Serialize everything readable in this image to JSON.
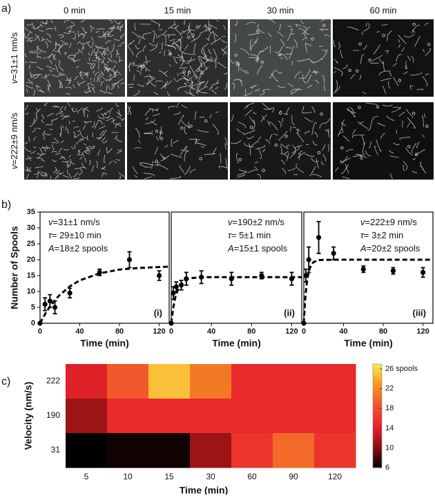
{
  "figure": {
    "panel_labels": [
      "a)",
      "b)",
      "c)"
    ],
    "micrographs": {
      "columns": [
        "0 min",
        "15 min",
        "30 min",
        "60 min"
      ],
      "rows": [
        {
          "symbol": "v",
          "text": "=31±1 nm/s"
        },
        {
          "symbol": "v",
          "text": "=222±9 nm/s"
        }
      ]
    }
  },
  "chart_data": [
    {
      "type": "scatter",
      "xlabel": "Time (min)",
      "ylabel": "Number of Spools",
      "xlim": [
        0,
        130
      ],
      "ylim": [
        0,
        35
      ],
      "xticks": [
        0,
        40,
        80,
        120
      ],
      "yticks": [
        0,
        5,
        10,
        15,
        20,
        25,
        30,
        35
      ],
      "annotations": [
        {
          "symbol": "v",
          "text": "=31±1 nm/s"
        },
        {
          "symbol": "τ",
          "text": "= 29±10 min"
        },
        {
          "symbol": "A",
          "text": "=18±2 spools"
        }
      ],
      "tag": "(i)",
      "color": "#000000",
      "x": [
        0,
        5,
        10,
        15,
        30,
        60,
        90,
        120
      ],
      "values": [
        0,
        6,
        7,
        5,
        9.5,
        16,
        20,
        15
      ],
      "errors": [
        0,
        2,
        2,
        2,
        1.5,
        1,
        2.5,
        1.5
      ],
      "fit": {
        "x": [
          0,
          5,
          10,
          15,
          20,
          30,
          40,
          60,
          80,
          100,
          120,
          130
        ],
        "values": [
          0,
          2.85,
          5.26,
          7.27,
          8.96,
          11.6,
          13.5,
          15.7,
          16.9,
          17.4,
          17.7,
          17.8
        ]
      }
    },
    {
      "type": "scatter",
      "xlabel": "Time (min)",
      "xlim": [
        0,
        130
      ],
      "ylim": [
        0,
        35
      ],
      "xticks": [
        0,
        40,
        80,
        120
      ],
      "annotations": [
        {
          "symbol": "v",
          "text": "=190±2 nm/s"
        },
        {
          "symbol": "τ",
          "text": "= 5±1 min"
        },
        {
          "symbol": "A",
          "text": "=15±1 spools"
        }
      ],
      "tag": "(ii)",
      "color": "#000000",
      "x": [
        0,
        2,
        5,
        10,
        15,
        30,
        60,
        90,
        120
      ],
      "values": [
        0,
        9.5,
        11.5,
        12,
        14,
        14.5,
        14,
        15,
        14
      ],
      "errors": [
        0,
        2,
        1.5,
        1.5,
        2,
        2,
        2,
        1,
        2
      ],
      "fit": {
        "x": [
          0,
          2,
          4,
          6,
          8,
          10,
          15,
          20,
          30,
          60,
          130
        ],
        "values": [
          0,
          4.9,
          8.1,
          10.1,
          11.4,
          12.3,
          13.8,
          14.2,
          14.5,
          14.5,
          14.5
        ]
      }
    },
    {
      "type": "scatter",
      "xlabel": "Time (min)",
      "xlim": [
        0,
        130
      ],
      "ylim": [
        0,
        35
      ],
      "xticks": [
        0,
        40,
        80,
        120
      ],
      "annotations": [
        {
          "symbol": "v",
          "text": "=222±9 nm/s"
        },
        {
          "symbol": "τ",
          "text": "= 3±2 min"
        },
        {
          "symbol": "A",
          "text": "=20±2 spools"
        }
      ],
      "tag": "(iii)",
      "color": "#000000",
      "x": [
        0,
        2,
        5,
        15,
        30,
        60,
        90,
        120
      ],
      "values": [
        0,
        15,
        20,
        27,
        22,
        17,
        16.5,
        16
      ],
      "errors": [
        0,
        2,
        4,
        5,
        2,
        1,
        1,
        1.5
      ],
      "fit": {
        "x": [
          0,
          1,
          2,
          3,
          4,
          6,
          8,
          10,
          15,
          30,
          130
        ],
        "values": [
          0,
          5.7,
          9.7,
          12.6,
          14.7,
          17.3,
          18.6,
          19.3,
          19.9,
          20,
          20
        ]
      }
    },
    {
      "type": "heatmap",
      "xlabel": "Time (min)",
      "ylabel": "Velocity (nm/s)",
      "x": [
        "5",
        "10",
        "15",
        "30",
        "60",
        "90",
        "120"
      ],
      "y": [
        "222",
        "190",
        "31"
      ],
      "values": [
        [
          14,
          19,
          25,
          21,
          15,
          15,
          15
        ],
        [
          11,
          15,
          15,
          15,
          15,
          15,
          15
        ],
        [
          6,
          6.5,
          6.5,
          11,
          16,
          20,
          16
        ]
      ],
      "zlim": [
        6,
        27
      ],
      "zticks": [
        6,
        10,
        14,
        18,
        22,
        {
          "value": 26,
          "label": "26 spools"
        }
      ],
      "colormap": [
        "#000000",
        "#8a1010",
        "#e8232a",
        "#f0522e",
        "#f7961e",
        "#fde94f"
      ]
    }
  ]
}
